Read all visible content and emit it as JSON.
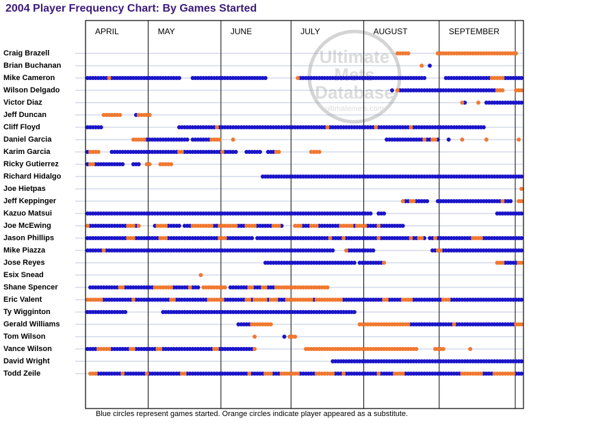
{
  "title": "2004 Player Frequency Chart: By Games Started",
  "note": "Blue circles represent games started. Orange circles indicate player appeared as a substitute.",
  "watermark": {
    "line1": "Ultimate",
    "line2": "Mets",
    "line3": "Database",
    "url": "ultimatemets.com"
  },
  "colors": {
    "started": "#1a14c8",
    "substitute": "#f07830",
    "title": "#3c1a7a",
    "row_line": "#8090c0",
    "border": "#000000"
  },
  "chart_data": {
    "type": "scatter",
    "title": "2004 Player Frequency Chart: By Games Started",
    "x_axis": {
      "unit": "game",
      "range": [
        1,
        162
      ],
      "months": [
        "APRIL",
        "MAY",
        "JUNE",
        "JULY",
        "AUGUST",
        "SEPTEMBER"
      ],
      "month_start_games": [
        1,
        24,
        51,
        77,
        104,
        132
      ]
    },
    "legend": {
      "started": "Blue circles represent games started.",
      "substitute": "Orange circles indicate player appeared as a substitute."
    },
    "series": [
      {
        "name": "Craig Brazell",
        "starts": "",
        "subs": "116-120, 131-160"
      },
      {
        "name": "Brian Buchanan",
        "starts": "128",
        "subs": "125"
      },
      {
        "name": "Mike Cameron",
        "starts": "1-8, 10-35, 40-67, 80-126, 134-150, 156-162",
        "subs": "9, 79, 151-155"
      },
      {
        "name": "Wilson Delgado",
        "starts": "114, 117-152",
        "subs": "116, 153-155, 160-162"
      },
      {
        "name": "Victor Diaz",
        "starts": "141, 149-162",
        "subs": "140, 146"
      },
      {
        "name": "Jeff Duncan",
        "starts": "19",
        "subs": "7-13, 20-24"
      },
      {
        "name": "Cliff Floyd",
        "starts": "1-6, 35-89, 91-107, 109-120, 122-148",
        "subs": "49, 90, 108, 121"
      },
      {
        "name": "Daniel Garcia",
        "starts": "23-38, 40-46, 112-125, 127-128, 131, 135",
        "subs": "18-22, 47-50, 55, 126, 129-130, 140, 149, 161"
      },
      {
        "name": "Karim Garcia",
        "starts": "1, 10-34, 37-50, 52-56, 60-65, 68-70",
        "subs": "2-5, 35-36, 51, 71-72, 84-87"
      },
      {
        "name": "Ricky Gutierrez",
        "starts": "1, 4-14, 18-20",
        "subs": "2-3, 23-24, 28-32"
      },
      {
        "name": "Richard Hidalgo",
        "starts": "66-162",
        "subs": ""
      },
      {
        "name": "Joe Hietpas",
        "starts": "",
        "subs": "162"
      },
      {
        "name": "Jeff Keppinger",
        "starts": "119-120, 123-127, 131-154, 156-158",
        "subs": "118, 121-122, 155, 161-162"
      },
      {
        "name": "Kazuo Matsui",
        "starts": "1-106, 109-111, 153-162",
        "subs": ""
      },
      {
        "name": "Joe McEwing",
        "starts": "2-15, 19, 26-35, 37-73, 78-95, 97-108, 110-118",
        "subs": "1, 16-18, 20, 27-30, 40-47, 50-56, 60-63, 70-72, 78-80, 84-86, 95-99, 101-104, 109"
      },
      {
        "name": "Jason Phillips",
        "starts": "1-15, 19-62, 64-90, 92-95, 97-108, 110-120, 122-123, 126, 128-162",
        "subs": "16-18, 28-30, 50-52, 91, 96, 109, 121, 124-125, 130, 144-147"
      },
      {
        "name": "Mike Piazza",
        "starts": "1-6, 8-92, 98-107, 129-162",
        "subs": "7, 97, 131-132"
      },
      {
        "name": "Jose Reyes",
        "starts": "67-100, 102-110, 153-162",
        "subs": "111, 153-155, 161-162"
      },
      {
        "name": "Esix Snead",
        "starts": "",
        "subs": "43"
      },
      {
        "name": "Shane Spencer",
        "starts": "2-12, 15-25, 33-38, 40-42, 54-60, 63-65, 68-70",
        "subs": "13-14, 26-32, 39, 44-52, 61-62, 66-67, 71-90"
      },
      {
        "name": "Eric Valent",
        "starts": "7-17, 19-31, 34-45, 52-59, 62, 68, 72-74, 85, 96-110, 113-117, 122-132, 136-162",
        "subs": "1-6, 18, 32-33, 46-51, 60-61, 63-67, 69-71, 75-84, 86-95, 111-112, 118-121, 133-135"
      },
      {
        "name": "Ty Wigginton",
        "starts": "1-15, 29-100",
        "subs": ""
      },
      {
        "name": "Gerald Williams",
        "starts": "57-61, 121-136, 138-159",
        "subs": "62-69, 102-120, 137, 160-162"
      },
      {
        "name": "Tom Wilson",
        "starts": "74",
        "subs": "63, 76-78"
      },
      {
        "name": "Vance Wilson",
        "starts": "1-4, 10-16, 19-26, 29-47, 50-62",
        "subs": "5-9, 17-18, 27-28, 48-49, 63, 82-123, 130-133, 143"
      },
      {
        "name": "David Wright",
        "starts": "92-162",
        "subs": ""
      },
      {
        "name": "Todd Zeile",
        "starts": "5-13, 15-22, 24-35, 38-60, 62-66, 70-72, 80-85, 93-95, 97-108, 110-162",
        "subs": "2-4, 14, 23, 36-37, 61, 67-69, 73-79, 86-92, 96, 109, 115-118, 140-147, 152-159"
      }
    ]
  }
}
